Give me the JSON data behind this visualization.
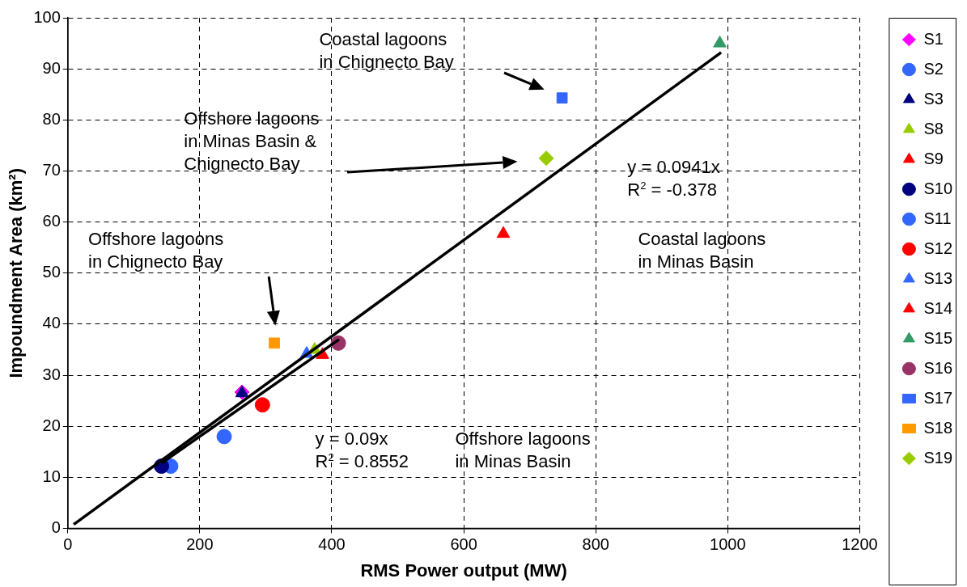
{
  "chart_data": {
    "type": "scatter",
    "xlabel": "RMS Power output (MW)",
    "ylabel": "Impoundment Area (km²)",
    "xlim": [
      0,
      1200
    ],
    "xticks": [
      0,
      200,
      400,
      600,
      800,
      1000,
      1200
    ],
    "ylim": [
      0,
      100
    ],
    "yticks": [
      0,
      10,
      20,
      30,
      40,
      50,
      60,
      70,
      80,
      90,
      100
    ],
    "grid": true,
    "legend": "right",
    "series": [
      {
        "name": "S1",
        "color": "#ff00ff",
        "marker": "diamond",
        "x": [
          264
        ],
        "values": [
          26.7
        ]
      },
      {
        "name": "S2",
        "color": "#3366ff",
        "marker": "circle",
        "x": [
          156
        ],
        "values": [
          12.2
        ]
      },
      {
        "name": "S3",
        "color": "#000080",
        "marker": "triangle",
        "x": [
          264
        ],
        "values": [
          26.5
        ]
      },
      {
        "name": "S8",
        "color": "#99cc00",
        "marker": "triangle",
        "x": [
          374
        ],
        "values": [
          35
        ]
      },
      {
        "name": "S9",
        "color": "#ff0000",
        "marker": "triangle",
        "x": [
          660
        ],
        "values": [
          57.7
        ]
      },
      {
        "name": "S10",
        "color": "#000080",
        "marker": "circle",
        "x": [
          142
        ],
        "values": [
          12.2
        ]
      },
      {
        "name": "S11",
        "color": "#3366ff",
        "marker": "circle",
        "x": [
          237
        ],
        "values": [
          18
        ]
      },
      {
        "name": "S12",
        "color": "#ff0000",
        "marker": "circle",
        "x": [
          295
        ],
        "values": [
          24.2
        ]
      },
      {
        "name": "S13",
        "color": "#3366ff",
        "marker": "triangle",
        "x": [
          362
        ],
        "values": [
          34.2
        ]
      },
      {
        "name": "S14",
        "color": "#ff0000",
        "marker": "triangle",
        "x": [
          386
        ],
        "values": [
          34
        ]
      },
      {
        "name": "S15",
        "color": "#339966",
        "marker": "triangle",
        "x": [
          988
        ],
        "values": [
          95
        ]
      },
      {
        "name": "S16",
        "color": "#993366",
        "marker": "circle",
        "x": [
          410
        ],
        "values": [
          36.3
        ]
      },
      {
        "name": "S17",
        "color": "#3366ff",
        "marker": "square",
        "x": [
          749
        ],
        "values": [
          84.3
        ]
      },
      {
        "name": "S18",
        "color": "#ff9900",
        "marker": "square",
        "x": [
          313
        ],
        "values": [
          36.3
        ]
      },
      {
        "name": "S19",
        "color": "#99cc00",
        "marker": "diamond",
        "x": [
          725
        ],
        "values": [
          72.5
        ]
      },
      {
        "type": "line",
        "color": "#000000",
        "marker": "none",
        "x": [
          9,
          990
        ],
        "values": [
          0.8,
          93.2
        ]
      },
      {
        "type": "line",
        "color": "#000000",
        "marker": "none",
        "x": [
          142,
          411
        ],
        "values": [
          12.8,
          37
        ]
      }
    ],
    "annotations": [
      "Coastal lagoons\nin Chignecto Bay",
      "Offshore lagoons\nin Minas Basin &\nChignecto Bay",
      "y = 0.0941x\nR$^{2}$ = -0.378",
      "Coastal lagoons\nin Minas Basin",
      "Offshore lagoons\nin Chignecto Bay",
      "y = 0.09x\nR$^{2}$ = 0.8552",
      "Offshore lagoons\nin Minas Basin"
    ]
  }
}
